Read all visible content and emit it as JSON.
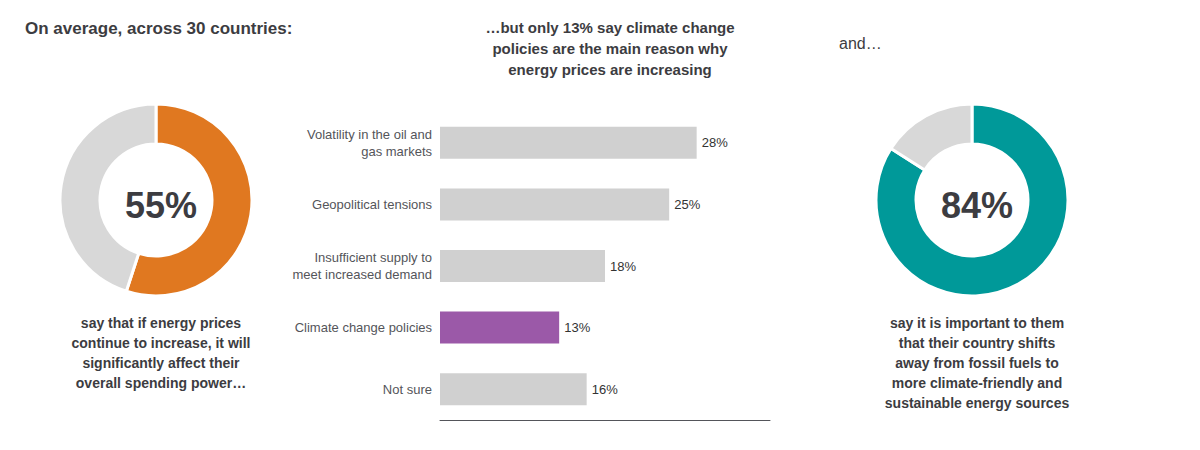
{
  "chart_data": [
    {
      "type": "pie",
      "title": "On average, across 30 countries:",
      "values": [
        55,
        45
      ],
      "colors": [
        "#E07820",
        "#D8D8D8"
      ],
      "annotations": [
        "55%",
        "say that if energy prices\ncontinue to increase, it will\nsignificantly affect their\noverall spending power…"
      ]
    },
    {
      "type": "bar",
      "orientation": "horizontal",
      "title": "…but only 13% say climate change\npolicies are the main reason why\nenergy prices are increasing",
      "categories": [
        "Volatility in the oil and\ngas markets",
        "Geopolitical tensions",
        "Insufficient supply to\nmeet increased demand",
        "Climate change policies",
        "Not sure"
      ],
      "values": [
        28,
        25,
        18,
        13,
        16
      ],
      "value_labels": [
        "28%",
        "25%",
        "18%",
        "13%",
        "16%"
      ],
      "colors": [
        "#D0D0D0",
        "#D0D0D0",
        "#D0D0D0",
        "#9B59A8",
        "#D0D0D0"
      ],
      "data_labels": true,
      "xlim": [
        0,
        36
      ],
      "tick_labels": "y",
      "grid": false
    },
    {
      "type": "pie",
      "title": "and…",
      "values": [
        84,
        16
      ],
      "colors": [
        "#009999",
        "#D8D8D8"
      ],
      "annotations": [
        "84%",
        "say it is important to them\nthat their country shifts\naway from fossil fuels to\nmore climate-friendly and\nsustainable energy sources"
      ]
    }
  ]
}
